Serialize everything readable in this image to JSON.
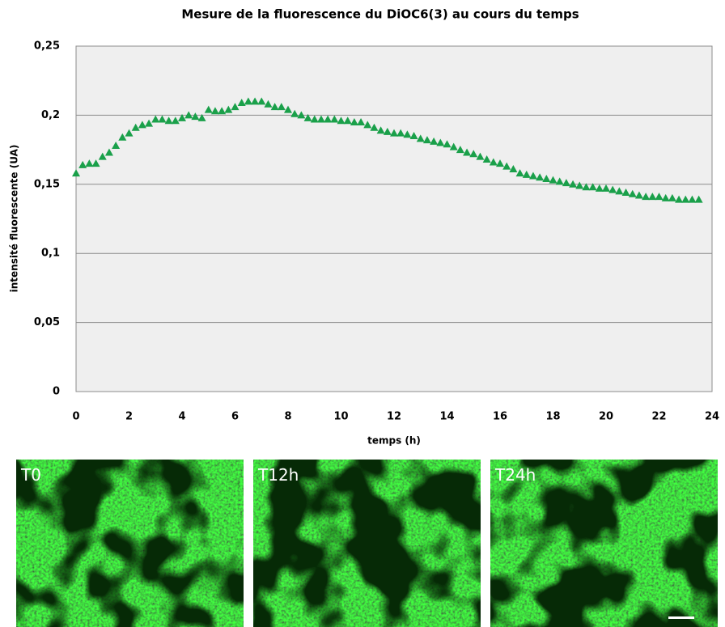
{
  "chart_data": {
    "type": "scatter",
    "title": "Mesure de la fluorescence du DiOC6(3) au cours du temps",
    "xlabel": "temps (h)",
    "ylabel": "intensité fluorescente (UA)",
    "color": "#1aa04a",
    "grid": true,
    "xlim": [
      0,
      24
    ],
    "xticks": [
      0,
      2,
      4,
      6,
      8,
      10,
      12,
      14,
      16,
      18,
      20,
      22,
      24
    ],
    "ylim": [
      0,
      0.25
    ],
    "yticks": [
      0,
      {
        "value": 0.05,
        "label": "0,05"
      },
      {
        "value": 0.1,
        "label": "0,1"
      },
      {
        "value": 0.15,
        "label": "0,15"
      },
      {
        "value": 0.2,
        "label": "0,2"
      },
      {
        "value": 0.25,
        "label": "0,25"
      }
    ],
    "x": [
      0,
      0.25,
      0.5,
      0.75,
      1,
      1.25,
      1.5,
      1.75,
      2,
      2.25,
      2.5,
      2.75,
      3,
      3.25,
      3.5,
      3.75,
      4,
      4.25,
      4.5,
      4.75,
      5,
      5.25,
      5.5,
      5.75,
      6,
      6.25,
      6.5,
      6.75,
      7,
      7.25,
      7.5,
      7.75,
      8,
      8.25,
      8.5,
      8.75,
      9,
      9.25,
      9.5,
      9.75,
      10,
      10.25,
      10.5,
      10.75,
      11,
      11.25,
      11.5,
      11.75,
      12,
      12.25,
      12.5,
      12.75,
      13,
      13.25,
      13.5,
      13.75,
      14,
      14.25,
      14.5,
      14.75,
      15,
      15.25,
      15.5,
      15.75,
      16,
      16.25,
      16.5,
      16.75,
      17,
      17.25,
      17.5,
      17.75,
      18,
      18.25,
      18.5,
      18.75,
      19,
      19.25,
      19.5,
      19.75,
      20,
      20.25,
      20.5,
      20.75,
      21,
      21.25,
      21.5,
      21.75,
      22,
      22.25,
      22.5,
      22.75,
      23,
      23.25,
      23.5
    ],
    "values": [
      0.158,
      0.164,
      0.165,
      0.165,
      0.17,
      0.173,
      0.178,
      0.184,
      0.187,
      0.191,
      0.193,
      0.194,
      0.197,
      0.197,
      0.196,
      0.196,
      0.198,
      0.2,
      0.199,
      0.198,
      0.204,
      0.203,
      0.203,
      0.204,
      0.206,
      0.209,
      0.21,
      0.21,
      0.21,
      0.208,
      0.206,
      0.206,
      0.204,
      0.201,
      0.2,
      0.198,
      0.197,
      0.197,
      0.197,
      0.197,
      0.196,
      0.196,
      0.195,
      0.195,
      0.193,
      0.191,
      0.189,
      0.188,
      0.187,
      0.187,
      0.186,
      0.185,
      0.183,
      0.182,
      0.181,
      0.18,
      0.179,
      0.177,
      0.175,
      0.173,
      0.172,
      0.17,
      0.168,
      0.166,
      0.165,
      0.163,
      0.161,
      0.158,
      0.157,
      0.156,
      0.155,
      0.154,
      0.153,
      0.152,
      0.151,
      0.15,
      0.149,
      0.148,
      0.148,
      0.147,
      0.147,
      0.146,
      0.145,
      0.144,
      0.143,
      0.142,
      0.141,
      0.141,
      0.141,
      0.14,
      0.14,
      0.139,
      0.139,
      0.139,
      0.139
    ]
  },
  "panels": [
    {
      "label": "T0"
    },
    {
      "label": "T12h"
    },
    {
      "label": "T24h"
    }
  ]
}
